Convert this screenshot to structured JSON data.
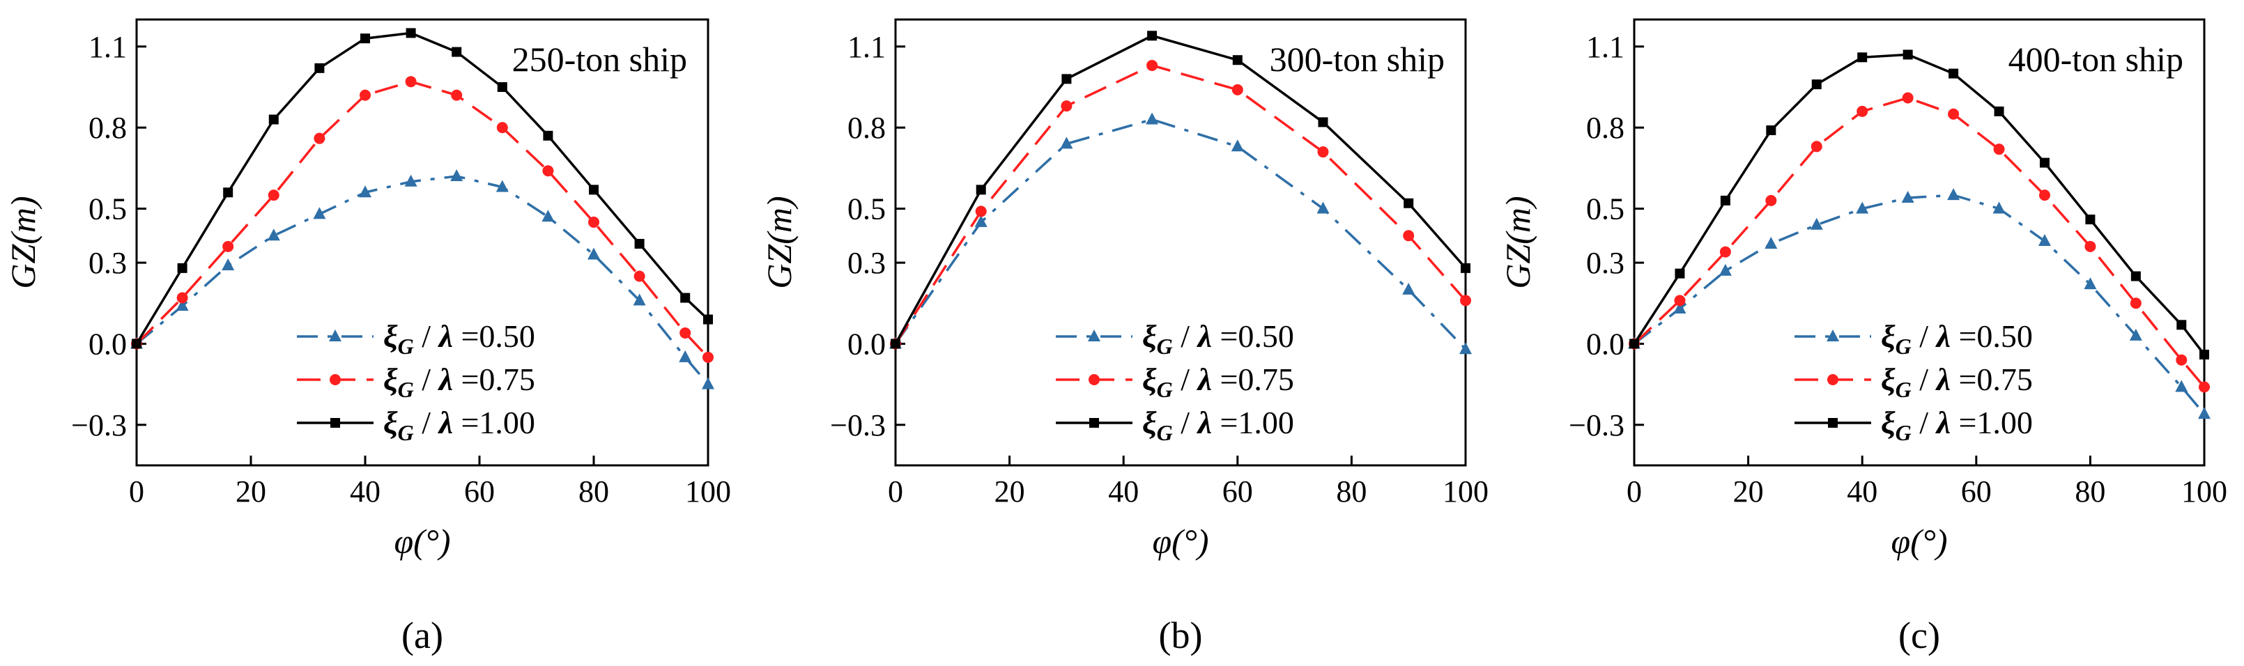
{
  "chart_data": [
    {
      "type": "line",
      "panel_label": "(a)",
      "title": "250-ton ship",
      "xlabel": "φ(°)",
      "ylabel": "GZ(m)",
      "xlim": [
        0,
        100
      ],
      "ylim": [
        -0.45,
        1.2
      ],
      "xticks": [
        "0",
        "20",
        "40",
        "60",
        "80",
        "100"
      ],
      "yticks": [
        "−0.3",
        "0.0",
        "0.3",
        "0.5",
        "0.8",
        "1.1"
      ],
      "ytick_values": [
        -0.3,
        0.0,
        0.3,
        0.5,
        0.8,
        1.1
      ],
      "grid": false,
      "legend_position": "bottom-center",
      "series": [
        {
          "name": "ξG / λ =0.50",
          "legend_symbol": "ξ",
          "legend_sub": "G",
          "legend_mid": " / ",
          "legend_lambda": "λ",
          "legend_value": " =0.50",
          "color": "#2e6fa7",
          "marker": "triangle",
          "dash": "dashdot",
          "x": [
            0,
            8,
            16,
            24,
            32,
            40,
            48,
            56,
            64,
            72,
            80,
            88,
            96,
            100
          ],
          "y": [
            0.0,
            0.14,
            0.29,
            0.4,
            0.48,
            0.56,
            0.6,
            0.62,
            0.58,
            0.47,
            0.33,
            0.16,
            -0.05,
            -0.15
          ]
        },
        {
          "name": "ξG / λ =0.75",
          "legend_symbol": "ξ",
          "legend_sub": "G",
          "legend_mid": " / ",
          "legend_lambda": "λ",
          "legend_value": " =0.75",
          "color": "#ff1f1f",
          "marker": "circle",
          "dash": "dash",
          "x": [
            0,
            8,
            16,
            24,
            32,
            40,
            48,
            56,
            64,
            72,
            80,
            88,
            96,
            100
          ],
          "y": [
            0.0,
            0.17,
            0.36,
            0.55,
            0.76,
            0.92,
            0.97,
            0.92,
            0.8,
            0.64,
            0.45,
            0.25,
            0.04,
            -0.05
          ]
        },
        {
          "name": "ξG / λ =1.00",
          "legend_symbol": "ξ",
          "legend_sub": "G",
          "legend_mid": " / ",
          "legend_lambda": "λ",
          "legend_value": " =1.00",
          "color": "#000000",
          "marker": "square",
          "dash": "solid",
          "x": [
            0,
            8,
            16,
            24,
            32,
            40,
            48,
            56,
            64,
            72,
            80,
            88,
            96,
            100
          ],
          "y": [
            0.0,
            0.28,
            0.56,
            0.83,
            1.02,
            1.13,
            1.15,
            1.08,
            0.95,
            0.77,
            0.57,
            0.37,
            0.17,
            0.09
          ]
        }
      ]
    },
    {
      "type": "line",
      "panel_label": "(b)",
      "title": "300-ton ship",
      "xlabel": "φ(°)",
      "ylabel": "GZ(m)",
      "xlim": [
        0,
        100
      ],
      "ylim": [
        -0.45,
        1.2
      ],
      "xticks": [
        "0",
        "20",
        "40",
        "60",
        "80",
        "100"
      ],
      "yticks": [
        "−0.3",
        "0.0",
        "0.3",
        "0.5",
        "0.8",
        "1.1"
      ],
      "ytick_values": [
        -0.3,
        0.0,
        0.3,
        0.5,
        0.8,
        1.1
      ],
      "grid": false,
      "legend_position": "bottom-center",
      "series": [
        {
          "name": "ξG / λ =0.50",
          "legend_symbol": "ξ",
          "legend_sub": "G",
          "legend_mid": " / ",
          "legend_lambda": "λ",
          "legend_value": " =0.50",
          "color": "#2e6fa7",
          "marker": "triangle",
          "dash": "dashdot",
          "x": [
            0,
            15,
            30,
            45,
            60,
            75,
            90,
            100
          ],
          "y": [
            0.0,
            0.45,
            0.74,
            0.83,
            0.73,
            0.5,
            0.2,
            -0.02
          ]
        },
        {
          "name": "ξG / λ =0.75",
          "legend_symbol": "ξ",
          "legend_sub": "G",
          "legend_mid": " / ",
          "legend_lambda": "λ",
          "legend_value": " =0.75",
          "color": "#ff1f1f",
          "marker": "circle",
          "dash": "dash",
          "x": [
            0,
            15,
            30,
            45,
            60,
            75,
            90,
            100
          ],
          "y": [
            0.0,
            0.49,
            0.88,
            1.03,
            0.94,
            0.71,
            0.4,
            0.16
          ]
        },
        {
          "name": "ξG / λ =1.00",
          "legend_symbol": "ξ",
          "legend_sub": "G",
          "legend_mid": " / ",
          "legend_lambda": "λ",
          "legend_value": " =1.00",
          "color": "#000000",
          "marker": "square",
          "dash": "solid",
          "x": [
            0,
            15,
            30,
            45,
            60,
            75,
            90,
            100
          ],
          "y": [
            0.0,
            0.57,
            0.98,
            1.14,
            1.05,
            0.82,
            0.52,
            0.28
          ]
        }
      ]
    },
    {
      "type": "line",
      "panel_label": "(c)",
      "title": "400-ton ship",
      "xlabel": "φ(°)",
      "ylabel": "GZ(m)",
      "xlim": [
        0,
        100
      ],
      "ylim": [
        -0.45,
        1.2
      ],
      "xticks": [
        "0",
        "20",
        "40",
        "60",
        "80",
        "100"
      ],
      "yticks": [
        "−0.3",
        "0.0",
        "0.3",
        "0.5",
        "0.8",
        "1.1"
      ],
      "ytick_values": [
        -0.3,
        0.0,
        0.3,
        0.5,
        0.8,
        1.1
      ],
      "grid": false,
      "legend_position": "bottom-center",
      "series": [
        {
          "name": "ξG / λ =0.50",
          "legend_symbol": "ξ",
          "legend_sub": "G",
          "legend_mid": " / ",
          "legend_lambda": "λ",
          "legend_value": " =0.50",
          "color": "#2e6fa7",
          "marker": "triangle",
          "dash": "dashdot",
          "x": [
            0,
            8,
            16,
            24,
            32,
            40,
            48,
            56,
            64,
            72,
            80,
            88,
            96,
            100
          ],
          "y": [
            0.0,
            0.13,
            0.27,
            0.37,
            0.44,
            0.5,
            0.54,
            0.55,
            0.5,
            0.38,
            0.22,
            0.03,
            -0.16,
            -0.26
          ]
        },
        {
          "name": "ξG / λ =0.75",
          "legend_symbol": "ξ",
          "legend_sub": "G",
          "legend_mid": " / ",
          "legend_lambda": "λ",
          "legend_value": " =0.75",
          "color": "#ff1f1f",
          "marker": "circle",
          "dash": "dash",
          "x": [
            0,
            8,
            16,
            24,
            32,
            40,
            48,
            56,
            64,
            72,
            80,
            88,
            96,
            100
          ],
          "y": [
            0.0,
            0.16,
            0.34,
            0.53,
            0.73,
            0.86,
            0.91,
            0.85,
            0.72,
            0.55,
            0.36,
            0.15,
            -0.06,
            -0.16
          ]
        },
        {
          "name": "ξG / λ =1.00",
          "legend_symbol": "ξ",
          "legend_sub": "G",
          "legend_mid": " / ",
          "legend_lambda": "λ",
          "legend_value": " =1.00",
          "color": "#000000",
          "marker": "square",
          "dash": "solid",
          "x": [
            0,
            8,
            16,
            24,
            32,
            40,
            48,
            56,
            64,
            72,
            80,
            88,
            96,
            100
          ],
          "y": [
            0.0,
            0.26,
            0.53,
            0.79,
            0.96,
            1.06,
            1.07,
            1.0,
            0.86,
            0.67,
            0.46,
            0.25,
            0.07,
            -0.04
          ]
        }
      ]
    }
  ]
}
